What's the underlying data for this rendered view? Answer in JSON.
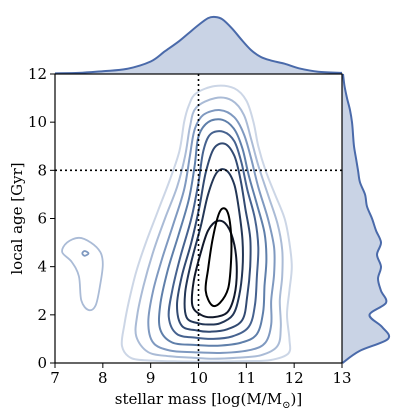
{
  "chart_data": {
    "type": "kde-contour-joint",
    "xlabel": "stellar mass [log(M/M",
    "xlabel_sub": "⊙",
    "xlabel_end": ")]",
    "ylabel": "local age [Gyr]",
    "xlim": [
      7,
      13
    ],
    "ylim": [
      0,
      12
    ],
    "xticks": [
      "7",
      "8",
      "9",
      "10",
      "11",
      "12",
      "13"
    ],
    "yticks": [
      "0",
      "2",
      "4",
      "6",
      "8",
      "10",
      "12"
    ],
    "reference_lines": {
      "x": 10,
      "y": 8,
      "style": "dotted"
    },
    "colors": {
      "levels": [
        "#ccd6e6",
        "#aabbd6",
        "#7f99c0",
        "#5f7faa",
        "#46628f",
        "#324a72",
        "#233656",
        "#11182a",
        "#000000"
      ],
      "marginal_line": "#4a6aaa",
      "marginal_fill": "#c9d3e5"
    },
    "contours": [
      {
        "level": 1,
        "points": [
          [
            9.88,
            0.06
          ],
          [
            9.5,
            0.07
          ],
          [
            9.05,
            0.1
          ],
          [
            8.6,
            0.2
          ],
          [
            8.4,
            0.7
          ],
          [
            8.45,
            1.6
          ],
          [
            8.55,
            2.6
          ],
          [
            8.7,
            3.8
          ],
          [
            8.9,
            5.0
          ],
          [
            9.15,
            6.3
          ],
          [
            9.4,
            7.6
          ],
          [
            9.6,
            8.8
          ],
          [
            9.7,
            10.0
          ],
          [
            9.8,
            10.7
          ],
          [
            9.95,
            11.2
          ],
          [
            10.35,
            11.5
          ],
          [
            10.75,
            11.4
          ],
          [
            11.0,
            10.9
          ],
          [
            11.15,
            10.0
          ],
          [
            11.25,
            9.0
          ],
          [
            11.4,
            8.0
          ],
          [
            11.6,
            7.0
          ],
          [
            11.8,
            6.0
          ],
          [
            11.9,
            5.0
          ],
          [
            11.95,
            4.0
          ],
          [
            11.9,
            3.0
          ],
          [
            11.85,
            2.0
          ],
          [
            11.9,
            1.0
          ],
          [
            11.88,
            0.4
          ],
          [
            11.5,
            0.12
          ],
          [
            11.0,
            0.08
          ],
          [
            10.5,
            0.06
          ]
        ]
      },
      {
        "level": 2,
        "points": [
          [
            9.88,
            0.22
          ],
          [
            9.4,
            0.28
          ],
          [
            8.95,
            0.45
          ],
          [
            8.7,
            1.1
          ],
          [
            8.72,
            2.0
          ],
          [
            8.85,
            3.2
          ],
          [
            9.05,
            4.6
          ],
          [
            9.3,
            6.0
          ],
          [
            9.55,
            7.3
          ],
          [
            9.72,
            8.6
          ],
          [
            9.82,
            9.8
          ],
          [
            9.95,
            10.6
          ],
          [
            10.35,
            11.0
          ],
          [
            10.7,
            10.9
          ],
          [
            10.95,
            10.3
          ],
          [
            11.1,
            9.3
          ],
          [
            11.25,
            8.2
          ],
          [
            11.45,
            7.0
          ],
          [
            11.65,
            5.8
          ],
          [
            11.75,
            4.7
          ],
          [
            11.75,
            3.6
          ],
          [
            11.7,
            2.6
          ],
          [
            11.72,
            1.5
          ],
          [
            11.65,
            0.7
          ],
          [
            11.3,
            0.32
          ],
          [
            10.8,
            0.22
          ],
          [
            10.3,
            0.18
          ]
        ]
      },
      {
        "level": 3,
        "points": [
          [
            9.9,
            0.45
          ],
          [
            9.4,
            0.52
          ],
          [
            9.05,
            0.85
          ],
          [
            8.95,
            1.7
          ],
          [
            9.05,
            3.0
          ],
          [
            9.25,
            4.4
          ],
          [
            9.48,
            5.8
          ],
          [
            9.7,
            7.2
          ],
          [
            9.82,
            8.6
          ],
          [
            9.92,
            9.7
          ],
          [
            10.1,
            10.3
          ],
          [
            10.45,
            10.5
          ],
          [
            10.75,
            10.2
          ],
          [
            10.95,
            9.5
          ],
          [
            11.1,
            8.5
          ],
          [
            11.25,
            7.3
          ],
          [
            11.45,
            6.0
          ],
          [
            11.58,
            4.8
          ],
          [
            11.58,
            3.7
          ],
          [
            11.52,
            2.6
          ],
          [
            11.52,
            1.6
          ],
          [
            11.4,
            0.85
          ],
          [
            11.1,
            0.55
          ],
          [
            10.5,
            0.42
          ]
        ]
      },
      {
        "level": 4,
        "points": [
          [
            9.9,
            0.75
          ],
          [
            9.45,
            0.85
          ],
          [
            9.2,
            1.4
          ],
          [
            9.2,
            2.4
          ],
          [
            9.35,
            3.8
          ],
          [
            9.58,
            5.3
          ],
          [
            9.8,
            6.8
          ],
          [
            9.92,
            8.2
          ],
          [
            10.0,
            9.4
          ],
          [
            10.2,
            10.0
          ],
          [
            10.5,
            10.1
          ],
          [
            10.75,
            9.7
          ],
          [
            10.92,
            8.9
          ],
          [
            11.05,
            7.8
          ],
          [
            11.22,
            6.6
          ],
          [
            11.38,
            5.4
          ],
          [
            11.42,
            4.3
          ],
          [
            11.38,
            3.2
          ],
          [
            11.35,
            2.1
          ],
          [
            11.22,
            1.2
          ],
          [
            10.9,
            0.85
          ],
          [
            10.4,
            0.72
          ]
        ]
      },
      {
        "level": 5,
        "points": [
          [
            9.95,
            1.05
          ],
          [
            9.55,
            1.2
          ],
          [
            9.38,
            1.9
          ],
          [
            9.45,
            3.0
          ],
          [
            9.62,
            4.4
          ],
          [
            9.85,
            6.0
          ],
          [
            10.0,
            7.5
          ],
          [
            10.1,
            8.8
          ],
          [
            10.25,
            9.5
          ],
          [
            10.52,
            9.6
          ],
          [
            10.75,
            9.2
          ],
          [
            10.9,
            8.3
          ],
          [
            11.02,
            7.2
          ],
          [
            11.18,
            6.0
          ],
          [
            11.25,
            4.8
          ],
          [
            11.22,
            3.6
          ],
          [
            11.18,
            2.4
          ],
          [
            11.05,
            1.5
          ],
          [
            10.7,
            1.1
          ],
          [
            10.3,
            1.0
          ]
        ]
      },
      {
        "level": 6,
        "points": [
          [
            9.97,
            1.35
          ],
          [
            9.65,
            1.55
          ],
          [
            9.55,
            2.4
          ],
          [
            9.65,
            3.6
          ],
          [
            9.85,
            5.0
          ],
          [
            10.02,
            6.5
          ],
          [
            10.15,
            7.9
          ],
          [
            10.32,
            8.9
          ],
          [
            10.55,
            9.1
          ],
          [
            10.75,
            8.6
          ],
          [
            10.88,
            7.6
          ],
          [
            10.98,
            6.4
          ],
          [
            11.08,
            5.2
          ],
          [
            11.08,
            4.0
          ],
          [
            11.02,
            2.8
          ],
          [
            10.92,
            1.8
          ],
          [
            10.6,
            1.4
          ],
          [
            10.25,
            1.3
          ]
        ]
      },
      {
        "level": 7,
        "points": [
          [
            10.0,
            1.65
          ],
          [
            9.75,
            1.9
          ],
          [
            9.72,
            2.9
          ],
          [
            9.85,
            4.2
          ],
          [
            10.05,
            5.7
          ],
          [
            10.2,
            7.0
          ],
          [
            10.38,
            7.9
          ],
          [
            10.58,
            8.0
          ],
          [
            10.75,
            7.4
          ],
          [
            10.85,
            6.3
          ],
          [
            10.92,
            5.1
          ],
          [
            10.92,
            3.9
          ],
          [
            10.85,
            2.8
          ],
          [
            10.72,
            2.0
          ],
          [
            10.45,
            1.65
          ],
          [
            10.2,
            1.6
          ]
        ]
      },
      {
        "level": 8,
        "points": [
          [
            10.05,
            2.0
          ],
          [
            9.87,
            2.4
          ],
          [
            9.9,
            3.4
          ],
          [
            10.05,
            4.6
          ],
          [
            10.2,
            5.5
          ],
          [
            10.4,
            5.9
          ],
          [
            10.6,
            5.7
          ],
          [
            10.75,
            4.9
          ],
          [
            10.8,
            3.8
          ],
          [
            10.75,
            2.8
          ],
          [
            10.6,
            2.1
          ],
          [
            10.3,
            1.9
          ]
        ]
      },
      {
        "level": 9,
        "points": [
          [
            10.28,
            2.4
          ],
          [
            10.15,
            3.0
          ],
          [
            10.2,
            3.9
          ],
          [
            10.3,
            5.2
          ],
          [
            10.45,
            6.3
          ],
          [
            10.6,
            6.3
          ],
          [
            10.68,
            5.4
          ],
          [
            10.68,
            4.2
          ],
          [
            10.62,
            3.1
          ],
          [
            10.45,
            2.5
          ]
        ]
      }
    ],
    "side_blob": [
      {
        "level": 1,
        "points": [
          [
            7.15,
            4.6
          ],
          [
            7.25,
            5.0
          ],
          [
            7.5,
            5.2
          ],
          [
            7.75,
            5.0
          ],
          [
            7.95,
            4.6
          ],
          [
            8.0,
            4.1
          ],
          [
            7.95,
            3.3
          ],
          [
            7.85,
            2.4
          ],
          [
            7.7,
            2.2
          ],
          [
            7.55,
            2.6
          ],
          [
            7.5,
            3.6
          ],
          [
            7.35,
            4.2
          ]
        ]
      },
      {
        "level": 2,
        "points": [
          [
            7.57,
            4.55
          ],
          [
            7.62,
            4.65
          ],
          [
            7.7,
            4.55
          ],
          [
            7.62,
            4.45
          ]
        ]
      }
    ],
    "marginal_x": [
      [
        7.0,
        0.01
      ],
      [
        7.5,
        0.02
      ],
      [
        8.0,
        0.05
      ],
      [
        8.5,
        0.09
      ],
      [
        9.0,
        0.22
      ],
      [
        9.3,
        0.4
      ],
      [
        9.6,
        0.58
      ],
      [
        9.8,
        0.72
      ],
      [
        10.0,
        0.86
      ],
      [
        10.2,
        0.98
      ],
      [
        10.35,
        1.0
      ],
      [
        10.5,
        0.96
      ],
      [
        10.7,
        0.8
      ],
      [
        10.9,
        0.6
      ],
      [
        11.1,
        0.42
      ],
      [
        11.3,
        0.3
      ],
      [
        11.5,
        0.24
      ],
      [
        11.8,
        0.18
      ],
      [
        12.1,
        0.1
      ],
      [
        12.5,
        0.04
      ],
      [
        13.0,
        0.02
      ]
    ],
    "marginal_y": [
      [
        0.0,
        0.01
      ],
      [
        0.5,
        0.35
      ],
      [
        1.0,
        0.92
      ],
      [
        1.5,
        0.8
      ],
      [
        2.0,
        0.55
      ],
      [
        2.5,
        0.88
      ],
      [
        3.0,
        0.78
      ],
      [
        3.5,
        0.72
      ],
      [
        4.0,
        0.78
      ],
      [
        4.5,
        0.7
      ],
      [
        5.0,
        0.78
      ],
      [
        5.5,
        0.68
      ],
      [
        6.0,
        0.6
      ],
      [
        6.5,
        0.5
      ],
      [
        7.0,
        0.46
      ],
      [
        7.5,
        0.36
      ],
      [
        8.0,
        0.32
      ],
      [
        8.5,
        0.28
      ],
      [
        9.0,
        0.24
      ],
      [
        9.5,
        0.22
      ],
      [
        10.0,
        0.2
      ],
      [
        10.5,
        0.16
      ],
      [
        11.0,
        0.1
      ],
      [
        11.5,
        0.05
      ],
      [
        12.0,
        0.02
      ]
    ]
  }
}
